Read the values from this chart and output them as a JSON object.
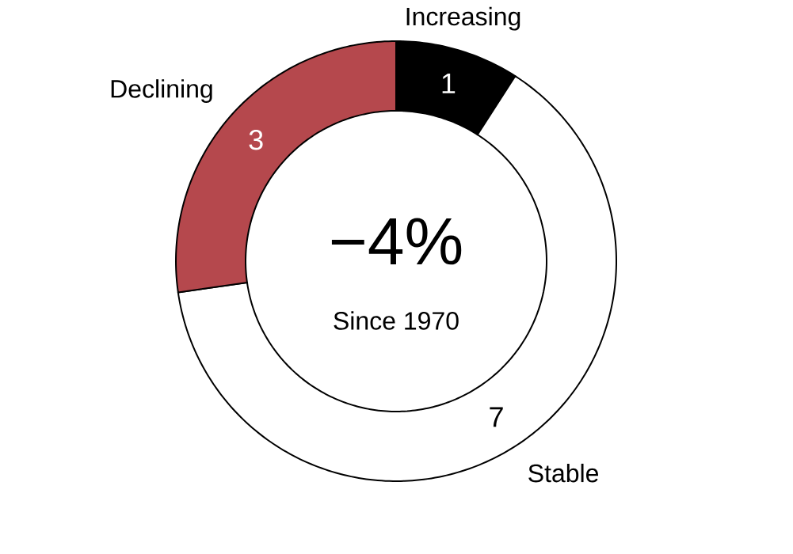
{
  "chart_data": {
    "type": "donut",
    "categories": [
      "Increasing",
      "Stable",
      "Declining"
    ],
    "values": [
      1,
      7,
      3
    ],
    "colors": [
      "#000000",
      "#ffffff",
      "#b5484d"
    ],
    "data_labels": true,
    "legend": false,
    "annotations": [
      "−4%",
      "Since 1970"
    ]
  }
}
